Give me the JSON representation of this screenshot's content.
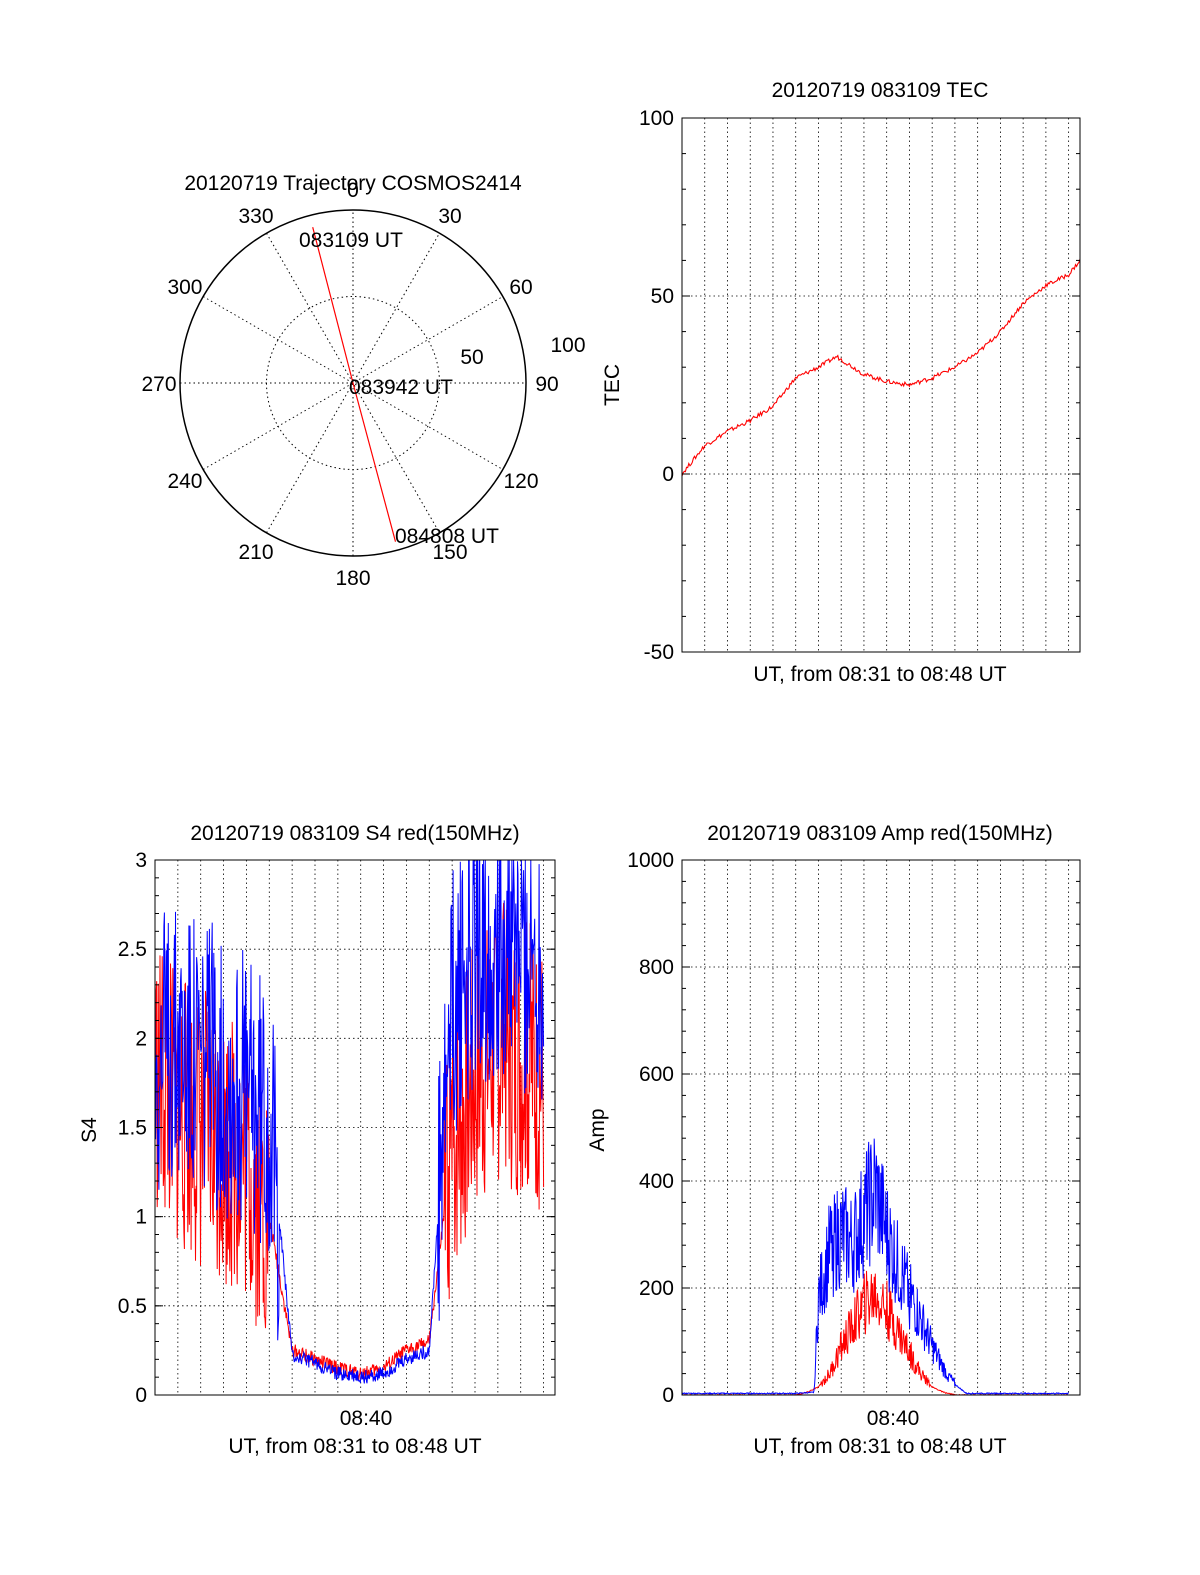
{
  "chart_data": [
    {
      "type": "polar",
      "title": "20120719 Trajectory COSMOS2414",
      "angle_labels": [
        "0",
        "30",
        "60",
        "90",
        "120",
        "150",
        "180",
        "210",
        "240",
        "270",
        "300",
        "330"
      ],
      "radius_labels": [
        "50",
        "100"
      ],
      "rlim": [
        0,
        100
      ],
      "grid": true,
      "trajectory_color": "#ff0000",
      "trajectory": [
        {
          "az": 345.5,
          "r": 93
        },
        {
          "az": 0,
          "r": 0
        },
        {
          "az": 165,
          "r": 95
        }
      ],
      "annotations": [
        "083109 UT",
        "083942 UT",
        "084808 UT"
      ]
    },
    {
      "type": "line",
      "title": "20120719 083109 TEC",
      "xlabel": "UT, from 08:31 to 08:48 UT",
      "ylabel": "TEC",
      "ylim": [
        -50,
        100
      ],
      "yticks": [
        "-50",
        "0",
        "50",
        "100"
      ],
      "grid": true,
      "series": [
        {
          "color": "#ff0000",
          "x": [
            0,
            0.5,
            1,
            2,
            3,
            4,
            5,
            6,
            6.8,
            8,
            9,
            10,
            11,
            12,
            13,
            14,
            15,
            16,
            17,
            17.5
          ],
          "values": [
            0,
            4,
            8,
            12,
            15,
            19,
            27,
            30,
            33,
            28,
            26,
            25,
            27,
            30,
            34,
            40,
            48,
            53,
            56,
            60
          ]
        }
      ]
    },
    {
      "type": "line",
      "title": "20120719 083109 S4 red(150MHz)",
      "xlabel": "UT, from 08:31 to 08:48 UT",
      "ylabel": "S4",
      "ylim": [
        0,
        3
      ],
      "yticks": [
        "0",
        "0.5",
        "1",
        "1.5",
        "2",
        "2.5",
        "3"
      ],
      "xticks": [
        "08:40"
      ],
      "grid": true,
      "series": [
        {
          "color": "#ff0000",
          "x": [
            0,
            1,
            2,
            3,
            4,
            5,
            6,
            7,
            8,
            9,
            10,
            11,
            12,
            13,
            14,
            15,
            16,
            17
          ],
          "values": [
            1.8,
            1.6,
            1.5,
            1.4,
            1.3,
            1.0,
            0.25,
            0.2,
            0.15,
            0.12,
            0.15,
            0.25,
            0.3,
            1.4,
            1.8,
            2.0,
            1.9,
            1.8
          ]
        },
        {
          "color": "#0000ff",
          "x": [
            0,
            1,
            2,
            3,
            4,
            5,
            6,
            7,
            8,
            9,
            10,
            11,
            12,
            13,
            14,
            15,
            16,
            17
          ],
          "values": [
            1.9,
            2.0,
            1.9,
            1.8,
            1.7,
            1.6,
            0.22,
            0.18,
            0.12,
            0.1,
            0.12,
            0.2,
            0.25,
            2.2,
            2.5,
            2.6,
            2.5,
            2.4
          ]
        }
      ]
    },
    {
      "type": "line",
      "title": "20120719 083109 Amp red(150MHz)",
      "xlabel": "UT, from 08:31 to 08:48 UT",
      "ylabel": "Amp",
      "ylim": [
        0,
        1000
      ],
      "yticks": [
        "0",
        "200",
        "400",
        "600",
        "800",
        "1000"
      ],
      "xticks": [
        "08:40"
      ],
      "grid": true,
      "series": [
        {
          "color": "#ff0000",
          "x": [
            0,
            5,
            5.5,
            6,
            6.5,
            7,
            7.5,
            8,
            8.5,
            9,
            9.5,
            10,
            10.5,
            11,
            11.5,
            12,
            17
          ],
          "values": [
            0,
            0,
            5,
            15,
            40,
            90,
            130,
            170,
            190,
            160,
            120,
            80,
            40,
            15,
            5,
            0,
            0
          ]
        },
        {
          "color": "#0000ff",
          "x": [
            0,
            5,
            5.8,
            6,
            6.5,
            7,
            7.5,
            8,
            8.5,
            9,
            9.5,
            10,
            10.5,
            11,
            11.5,
            12,
            12.5,
            17
          ],
          "values": [
            3,
            3,
            5,
            180,
            270,
            300,
            280,
            330,
            380,
            300,
            240,
            190,
            140,
            90,
            50,
            20,
            3,
            3
          ]
        }
      ]
    }
  ]
}
